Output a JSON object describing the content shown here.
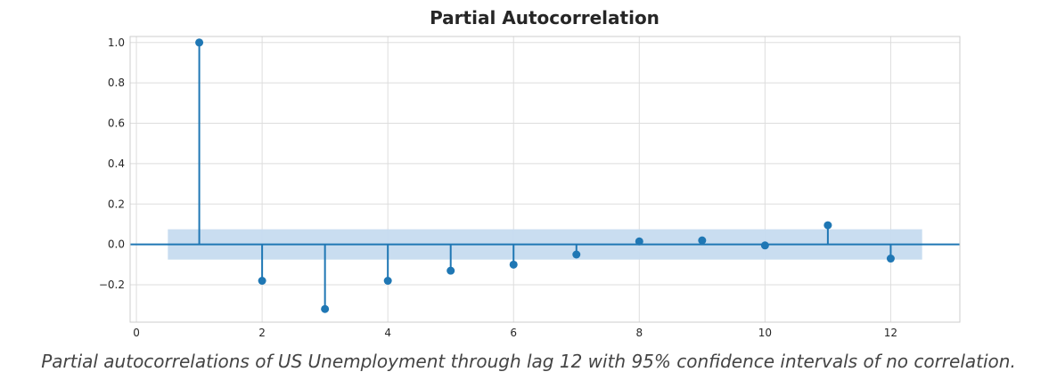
{
  "chart_data": {
    "type": "stem",
    "title": "Partial Autocorrelation",
    "xlabel": "",
    "ylabel": "",
    "x": [
      1,
      2,
      3,
      4,
      5,
      6,
      7,
      8,
      9,
      10,
      11,
      12
    ],
    "values": [
      1.0,
      -0.18,
      -0.32,
      -0.18,
      -0.13,
      -0.1,
      -0.05,
      0.015,
      0.02,
      -0.005,
      0.095,
      -0.07
    ],
    "confidence_interval": {
      "lower": -0.075,
      "upper": 0.075,
      "x_range": [
        0.5,
        12.5
      ],
      "label": "95% confidence interval of no correlation"
    },
    "xlim": [
      -0.1,
      13.1
    ],
    "ylim": [
      -0.385,
      1.03
    ],
    "x_ticks": [
      0,
      2,
      4,
      6,
      8,
      10,
      12
    ],
    "y_ticks": [
      -0.2,
      0.0,
      0.2,
      0.4,
      0.6,
      0.8,
      1.0
    ],
    "y_tick_labels": [
      "−0.2",
      "0.0",
      "0.2",
      "0.4",
      "0.6",
      "0.8",
      "1.0"
    ],
    "grid": true,
    "colors": {
      "series": "#1f77b4",
      "band": "#c6dbef",
      "grid": "#dddddd",
      "axis": "#cccccc"
    }
  },
  "caption": "Partial autocorrelations of US Unemployment through lag 12 with 95% confidence intervals of no correlation."
}
